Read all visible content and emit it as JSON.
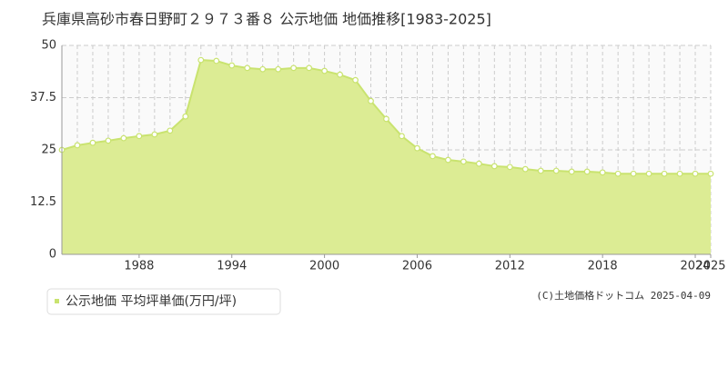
{
  "chart_data": {
    "type": "area",
    "title": "兵庫県高砂市春日野町２９７３番８ 公示地価 地価推移[1983-2025]",
    "x": [
      1983,
      1984,
      1985,
      1986,
      1987,
      1988,
      1989,
      1990,
      1991,
      1992,
      1993,
      1994,
      1995,
      1996,
      1997,
      1998,
      1999,
      2000,
      2001,
      2002,
      2003,
      2004,
      2005,
      2006,
      2007,
      2008,
      2009,
      2010,
      2011,
      2012,
      2013,
      2014,
      2015,
      2016,
      2017,
      2018,
      2019,
      2020,
      2021,
      2022,
      2023,
      2024,
      2025
    ],
    "series": [
      {
        "name": "公示地価 平均坪単価(万円/坪)",
        "color": "#c9e36f",
        "values": [
          25.0,
          26.1,
          26.7,
          27.2,
          27.8,
          28.3,
          28.7,
          29.6,
          33.0,
          46.5,
          46.3,
          45.2,
          44.6,
          44.3,
          44.3,
          44.6,
          44.6,
          43.9,
          43.0,
          41.7,
          36.7,
          32.4,
          28.3,
          25.4,
          23.5,
          22.6,
          22.2,
          21.7,
          21.1,
          20.9,
          20.4,
          20.0,
          20.0,
          19.8,
          19.8,
          19.6,
          19.3,
          19.3,
          19.3,
          19.3,
          19.3,
          19.3,
          19.3
        ]
      }
    ],
    "xlim": [
      1983,
      2025
    ],
    "xticks": [
      1988,
      1994,
      2000,
      2006,
      2012,
      2018,
      2024,
      2025
    ],
    "ylim": [
      0,
      50
    ],
    "yticks": [
      0,
      12.5,
      25,
      37.5,
      50
    ],
    "grid": true,
    "copyright": "(C)土地価格ドットコム 2025-04-09"
  }
}
